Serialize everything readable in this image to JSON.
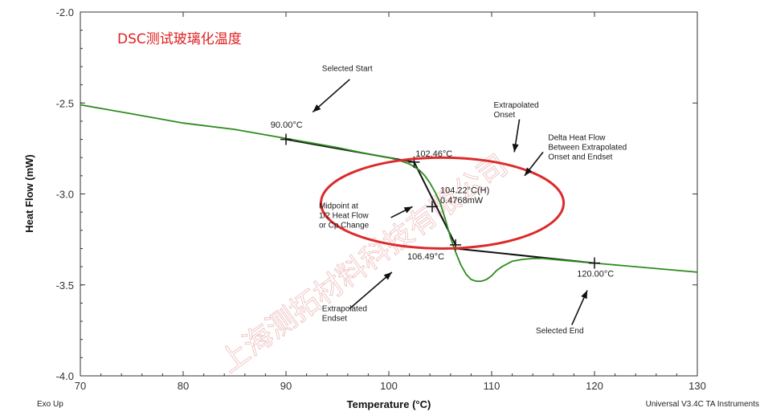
{
  "chart_data": {
    "type": "line",
    "title": "DSC测试玻璃化温度",
    "xlabel": "Temperature (°C)",
    "ylabel": "Heat Flow (mW)",
    "xlim": [
      70,
      130
    ],
    "ylim": [
      -4.0,
      -2.0
    ],
    "x_ticks": [
      70,
      80,
      90,
      100,
      110,
      120,
      130
    ],
    "y_ticks": [
      -4.0,
      -3.5,
      -3.0,
      -2.5,
      -2.0
    ],
    "x_tick_labels": [
      "70",
      "80",
      "90",
      "100",
      "110",
      "120",
      "130"
    ],
    "y_tick_labels": [
      "-4.0",
      "-3.5",
      "-3.0",
      "-2.5",
      "-2.0"
    ],
    "grid": false,
    "title_color": "#e02020",
    "series": [
      {
        "color": "#2e8b1e",
        "x": [
          70,
          75,
          80,
          85,
          90,
          95,
          98,
          100,
          101,
          102,
          103,
          103.5,
          104,
          104.5,
          105,
          105.5,
          106,
          106.5,
          107,
          107.5,
          108,
          108.5,
          109,
          109.5,
          110,
          110.5,
          111,
          112,
          113,
          114,
          115,
          117,
          120,
          123,
          126,
          130
        ],
        "y": [
          -2.51,
          -2.56,
          -2.61,
          -2.645,
          -2.695,
          -2.745,
          -2.78,
          -2.8,
          -2.815,
          -2.835,
          -2.87,
          -2.9,
          -2.94,
          -2.99,
          -3.05,
          -3.14,
          -3.24,
          -3.32,
          -3.39,
          -3.44,
          -3.47,
          -3.48,
          -3.48,
          -3.47,
          -3.45,
          -3.42,
          -3.4,
          -3.37,
          -3.36,
          -3.355,
          -3.355,
          -3.365,
          -3.38,
          -3.395,
          -3.41,
          -3.43
        ]
      }
    ],
    "construction_lines": [
      {
        "x": [
          90,
          102.46
        ],
        "y": [
          -2.7,
          -2.825
        ]
      },
      {
        "x": [
          102.46,
          106.49
        ],
        "y": [
          -2.825,
          -3.28
        ]
      },
      {
        "x": [
          106.49,
          120
        ],
        "y": [
          -3.3,
          -3.38
        ]
      }
    ],
    "markers": [
      {
        "x": 90,
        "y": -2.7
      },
      {
        "x": 102.46,
        "y": -2.825
      },
      {
        "x": 104.22,
        "y": -3.07
      },
      {
        "x": 106.49,
        "y": -3.28
      },
      {
        "x": 120,
        "y": -3.38
      }
    ],
    "point_labels": [
      {
        "text": "90.00°C",
        "x": 88.5,
        "y": -2.635
      },
      {
        "text": "102.46°C",
        "x": 102.6,
        "y": -2.795
      },
      {
        "text": "104.22°C(H)",
        "x": 105.0,
        "y": -2.995
      },
      {
        "text": "0.4768mW",
        "x": 105.0,
        "y": -3.05
      },
      {
        "text": "106.49°C",
        "x": 101.8,
        "y": -3.36
      },
      {
        "text": "120.00°C",
        "x": 118.3,
        "y": -3.455
      }
    ],
    "annotations": [
      {
        "lines": [
          "Selected Start"
        ],
        "x": 93.5,
        "y": -2.325
      },
      {
        "lines": [
          "Extrapolated",
          "Onset"
        ],
        "x": 110.2,
        "y": -2.525
      },
      {
        "lines": [
          "Delta Heat Flow",
          "Between Extrapolated",
          "Onset and Endset"
        ],
        "x": 115.5,
        "y": -2.705
      },
      {
        "lines": [
          "Midpoint at",
          "1/2 Heat Flow",
          "or Cp Change"
        ],
        "x": 93.2,
        "y": -3.08
      },
      {
        "lines": [
          "Extrapolated",
          "Endset"
        ],
        "x": 93.5,
        "y": -3.645
      },
      {
        "lines": [
          "Selected End"
        ],
        "x": 114.3,
        "y": -3.765
      }
    ],
    "arrows": [
      {
        "x": [
          96.2,
          92.6
        ],
        "y": [
          -2.37,
          -2.55
        ]
      },
      {
        "x": [
          112.7,
          112.2
        ],
        "y": [
          -2.59,
          -2.77
        ]
      },
      {
        "x": [
          115.0,
          113.2
        ],
        "y": [
          -2.77,
          -2.9
        ]
      },
      {
        "x": [
          100.2,
          102.3
        ],
        "y": [
          -3.13,
          -3.07
        ]
      },
      {
        "x": [
          96.2,
          100.3
        ],
        "y": [
          -3.63,
          -3.43
        ]
      },
      {
        "x": [
          117.8,
          119.3
        ],
        "y": [
          -3.72,
          -3.53
        ]
      }
    ],
    "highlight_ellipse": {
      "cx": 105.2,
      "cy": -3.05,
      "rx": 11.8,
      "ry": 0.25,
      "color": "#dd2a2a"
    }
  },
  "footer": {
    "left_text": "Exo Up",
    "right_text": "Universal V3.4C TA Instruments"
  },
  "watermark_text": "上海测拓材料科技有限公司"
}
